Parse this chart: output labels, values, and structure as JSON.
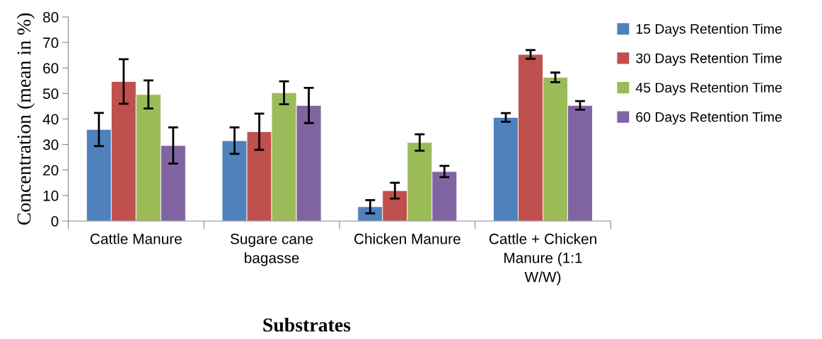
{
  "chart_data": {
    "type": "bar",
    "xlabel": "Substrates",
    "ylabel": "Concentration (mean in %)",
    "categories": [
      "Cattle Manure",
      "Sugare cane\nbagasse",
      "Chicken Manure",
      "Cattle + Chicken\nManure (1:1\nW/W)"
    ],
    "series": [
      {
        "name": "15 Days Retention Time",
        "color": "#4f81bd",
        "values": [
          35.9,
          31.5,
          5.6,
          40.6
        ],
        "errors": [
          6.5,
          5.2,
          2.6,
          1.7
        ]
      },
      {
        "name": "30 Days Retention Time",
        "color": "#c0504d",
        "values": [
          54.7,
          35.0,
          11.9,
          65.3
        ],
        "errors": [
          8.7,
          7.1,
          3.1,
          1.7
        ]
      },
      {
        "name": "45 Days Retention Time",
        "color": "#9bbb59",
        "values": [
          49.6,
          50.3,
          30.8,
          56.3
        ],
        "errors": [
          5.5,
          4.5,
          3.2,
          1.9
        ]
      },
      {
        "name": "60 Days Retention Time",
        "color": "#8064a2",
        "values": [
          29.6,
          45.3,
          19.4,
          45.3
        ],
        "errors": [
          7.1,
          6.9,
          2.2,
          1.7
        ]
      }
    ],
    "ylim": [
      0,
      80
    ],
    "yticks": [
      0,
      10,
      20,
      30,
      40,
      50,
      60,
      70,
      80
    ],
    "grid": false,
    "legend": "right"
  }
}
